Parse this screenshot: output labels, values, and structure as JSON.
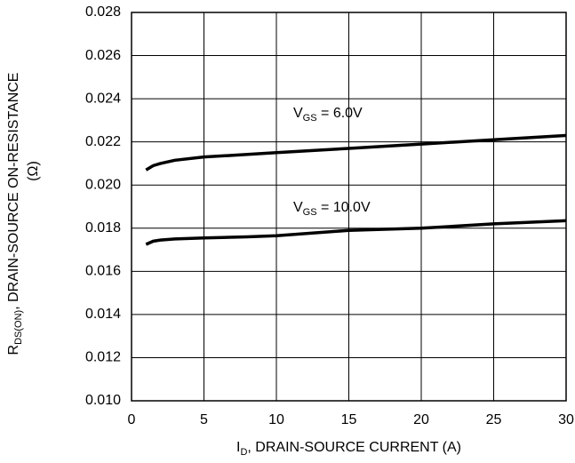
{
  "chart_data": {
    "type": "line",
    "xlabel": {
      "main": "I",
      "sub": "D",
      "rest": ", DRAIN-SOURCE CURRENT (A)"
    },
    "ylabel": {
      "main": "R",
      "sub": "DS(ON)",
      "rest": ", DRAIN-SOURCE ON-RESISTANCE",
      "line2": "(Ω)"
    },
    "x": [
      1,
      1.5,
      2,
      3,
      5,
      8,
      10,
      15,
      20,
      25,
      30
    ],
    "series": [
      {
        "label": {
          "main": "V",
          "sub": "GS",
          "rest": " = 6.0V"
        },
        "color": "#000000",
        "values": [
          0.0207,
          0.0209,
          0.021,
          0.02115,
          0.0213,
          0.02142,
          0.0215,
          0.0217,
          0.0219,
          0.0221,
          0.0223
        ]
      },
      {
        "label": {
          "main": "V",
          "sub": "GS",
          "rest": " = 10.0V"
        },
        "color": "#000000",
        "values": [
          0.01725,
          0.0174,
          0.01745,
          0.0175,
          0.01755,
          0.0176,
          0.01765,
          0.0179,
          0.018,
          0.0182,
          0.01835
        ]
      }
    ],
    "xlim": [
      0,
      30
    ],
    "xticks": [
      0,
      5,
      10,
      15,
      20,
      25,
      30
    ],
    "ylim": [
      0.01,
      0.028
    ],
    "yticks": [
      {
        "value": 0.01,
        "label": "0.010"
      },
      {
        "value": 0.012,
        "label": "0.012"
      },
      {
        "value": 0.014,
        "label": "0.014"
      },
      {
        "value": 0.016,
        "label": "0.016"
      },
      {
        "value": 0.018,
        "label": "0.018"
      },
      {
        "value": 0.02,
        "label": "0.020"
      },
      {
        "value": 0.022,
        "label": "0.022"
      },
      {
        "value": 0.024,
        "label": "0.024"
      },
      {
        "value": 0.026,
        "label": "0.026"
      },
      {
        "value": 0.028,
        "label": "0.028"
      }
    ],
    "grid": true
  }
}
